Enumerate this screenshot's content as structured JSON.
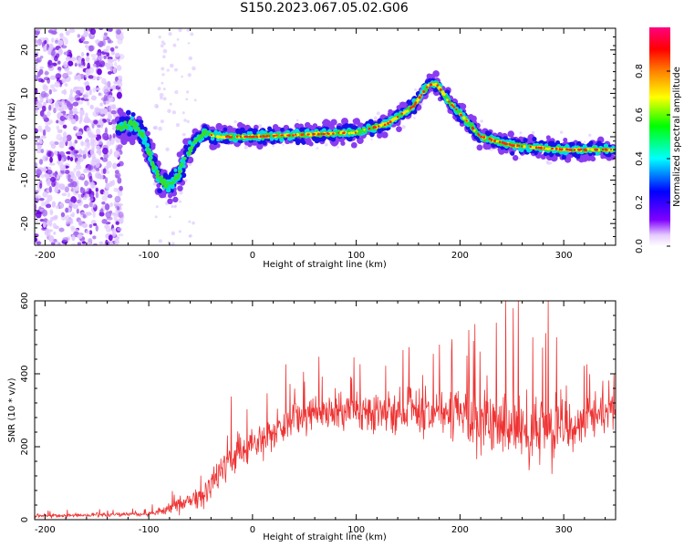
{
  "title": "S150.2023.067.05.02.G06",
  "chart_data": [
    {
      "type": "heatmap",
      "xlabel": "Height of straight line (km)",
      "ylabel": "Frequency (Hz)",
      "xlim": [
        -210,
        350
      ],
      "ylim": [
        -25,
        25
      ],
      "xticks": [
        -200,
        -100,
        0,
        100,
        200,
        300
      ],
      "yticks": [
        -20,
        -10,
        0,
        10,
        20
      ],
      "colorbar": {
        "label": "Normalized spectral amplitude",
        "range": [
          0,
          1
        ],
        "ticks": [
          0.0,
          0.2,
          0.4,
          0.6,
          0.8
        ],
        "colormap": [
          "#ffffff",
          "#8000ff",
          "#0000ff",
          "#00ffff",
          "#00ff00",
          "#ffff00",
          "#ff8000",
          "#ff0000",
          "#ff0080"
        ]
      },
      "ridge": [
        {
          "x": -130,
          "y": 2
        },
        {
          "x": -115,
          "y": 3
        },
        {
          "x": -105,
          "y": 0
        },
        {
          "x": -95,
          "y": -7
        },
        {
          "x": -88,
          "y": -10
        },
        {
          "x": -80,
          "y": -11
        },
        {
          "x": -72,
          "y": -9
        },
        {
          "x": -65,
          "y": -5
        },
        {
          "x": -55,
          "y": -1
        },
        {
          "x": -45,
          "y": 1
        },
        {
          "x": -35,
          "y": 0
        },
        {
          "x": 0,
          "y": 0
        },
        {
          "x": 50,
          "y": 0.5
        },
        {
          "x": 100,
          "y": 1
        },
        {
          "x": 130,
          "y": 3
        },
        {
          "x": 155,
          "y": 7
        },
        {
          "x": 170,
          "y": 12
        },
        {
          "x": 178,
          "y": 12
        },
        {
          "x": 190,
          "y": 8
        },
        {
          "x": 205,
          "y": 4
        },
        {
          "x": 220,
          "y": 0
        },
        {
          "x": 250,
          "y": -2
        },
        {
          "x": 300,
          "y": -3
        },
        {
          "x": 350,
          "y": -3
        }
      ],
      "noise_region": {
        "x_from": -210,
        "x_to": -125,
        "y_from": -25,
        "y_to": 25
      }
    },
    {
      "type": "line",
      "xlabel": "Height of straight line (km)",
      "ylabel": "SNR (10 * v/v)",
      "xlim": [
        -210,
        350
      ],
      "ylim": [
        0,
        600
      ],
      "xticks": [
        -200,
        -100,
        0,
        100,
        200,
        300
      ],
      "yticks": [
        0,
        200,
        400,
        600
      ],
      "color": "#ee3333",
      "envelope": [
        {
          "x": -210,
          "y": 10
        },
        {
          "x": -150,
          "y": 12
        },
        {
          "x": -100,
          "y": 15
        },
        {
          "x": -70,
          "y": 40
        },
        {
          "x": -50,
          "y": 60
        },
        {
          "x": -35,
          "y": 120
        },
        {
          "x": -25,
          "y": 160
        },
        {
          "x": 0,
          "y": 200
        },
        {
          "x": 25,
          "y": 250
        },
        {
          "x": 50,
          "y": 285
        },
        {
          "x": 100,
          "y": 300
        },
        {
          "x": 150,
          "y": 300
        },
        {
          "x": 200,
          "y": 290
        },
        {
          "x": 230,
          "y": 280
        },
        {
          "x": 260,
          "y": 240
        },
        {
          "x": 300,
          "y": 260
        },
        {
          "x": 350,
          "y": 300
        }
      ],
      "spread": [
        {
          "x": -210,
          "y": 6
        },
        {
          "x": -100,
          "y": 8
        },
        {
          "x": -50,
          "y": 40
        },
        {
          "x": -30,
          "y": 60
        },
        {
          "x": 0,
          "y": 60
        },
        {
          "x": 100,
          "y": 70
        },
        {
          "x": 200,
          "y": 90
        },
        {
          "x": 240,
          "y": 140
        },
        {
          "x": 300,
          "y": 110
        },
        {
          "x": 350,
          "y": 50
        }
      ],
      "peaks": [
        {
          "x": 235,
          "y": 540
        },
        {
          "x": 256,
          "y": 600
        },
        {
          "x": 270,
          "y": 500
        },
        {
          "x": 285,
          "y": 600
        },
        {
          "x": 293,
          "y": 500
        },
        {
          "x": 213,
          "y": 490
        },
        {
          "x": 180,
          "y": 480
        },
        {
          "x": 145,
          "y": 465
        },
        {
          "x": 98,
          "y": 445
        }
      ]
    }
  ]
}
